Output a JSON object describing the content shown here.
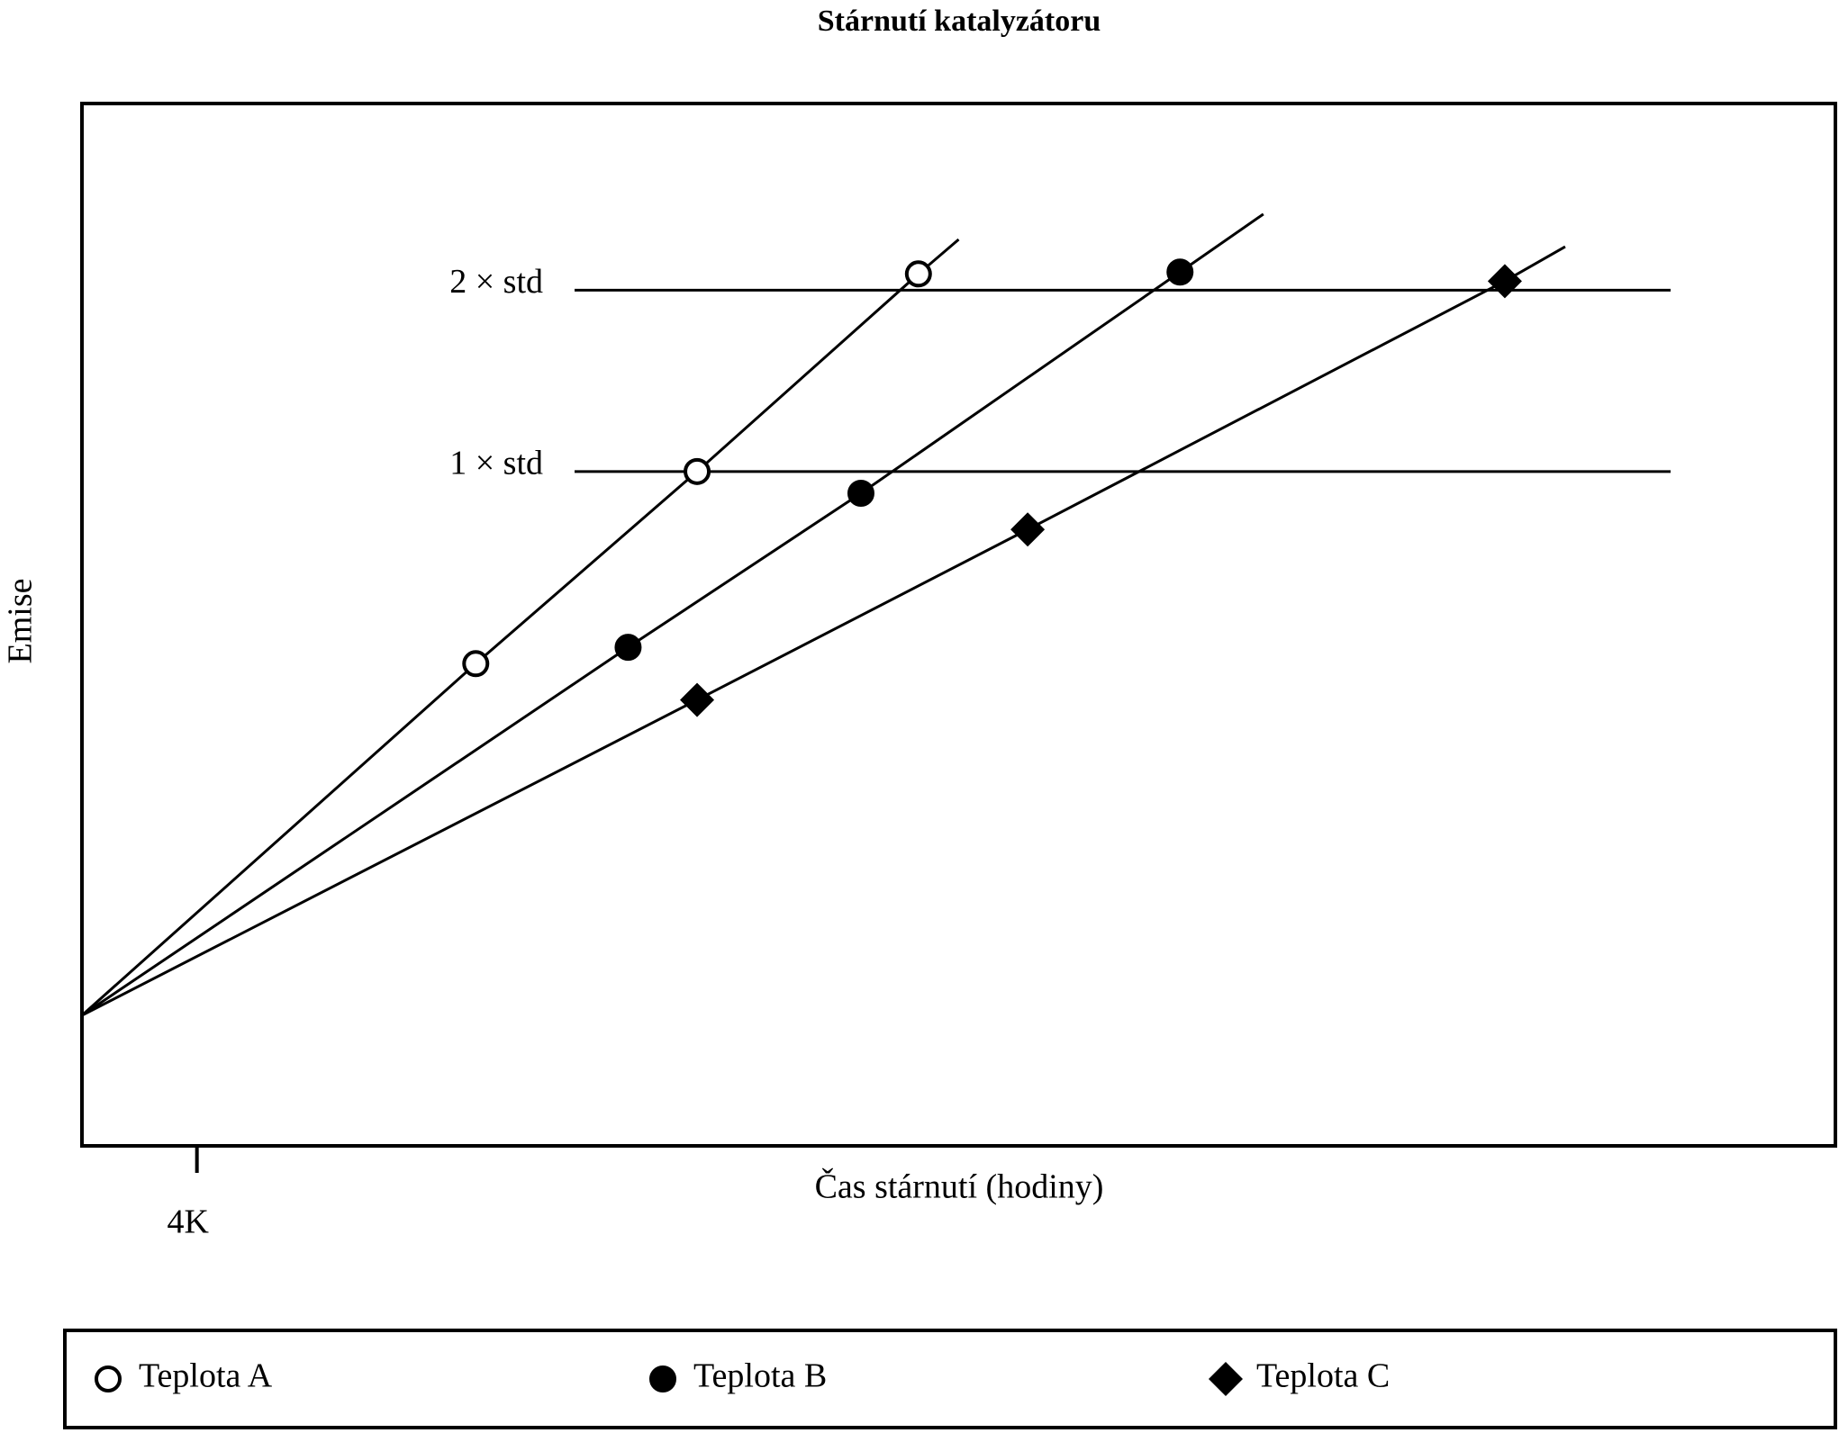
{
  "chart_data": {
    "type": "line",
    "title": "Stárnutí katalyzátoru",
    "x_label": "Čas stárnutí (hodiny)",
    "y_label": "Emise",
    "xlim": [
      0,
      61000
    ],
    "ylim": [
      -2.72,
      3.03
    ],
    "xticks": [
      {
        "value": 4000,
        "label": "4K"
      }
    ],
    "yticks": [
      {
        "value": 1,
        "label": "1 × std"
      },
      {
        "value": 2,
        "label": "2 × std"
      }
    ],
    "legend": "bottom",
    "series": [
      {
        "name": "Teplota A",
        "color": "#000000",
        "marker": "open-circle",
        "x": [
          0,
          13700,
          21400,
          29100,
          30500
        ],
        "values": [
          -2,
          -0.06,
          1,
          2.09,
          2.28
        ],
        "markers": [
          false,
          true,
          true,
          true,
          false
        ]
      },
      {
        "name": "Teplota B",
        "color": "#000000",
        "marker": "circle",
        "x": [
          0,
          19000,
          27100,
          38200,
          41100
        ],
        "values": [
          -2,
          0.03,
          0.88,
          2.1,
          2.42
        ],
        "markers": [
          false,
          true,
          true,
          true,
          false
        ]
      },
      {
        "name": "Teplota C",
        "color": "#000000",
        "marker": "diamond",
        "x": [
          0,
          21400,
          32900,
          49500,
          51600
        ],
        "values": [
          -2,
          -0.26,
          0.68,
          2.05,
          2.24
        ],
        "markers": [
          false,
          true,
          true,
          true,
          false
        ]
      }
    ]
  }
}
